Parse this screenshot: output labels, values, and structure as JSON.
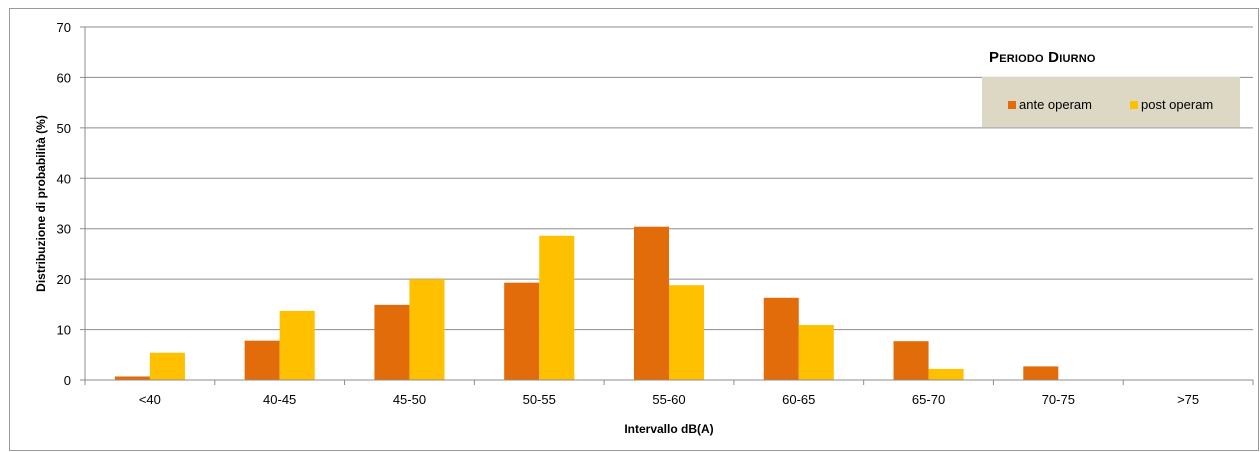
{
  "chart_data": {
    "type": "bar",
    "title": "Periodo Diurno",
    "xlabel": "Intervallo dB(A)",
    "ylabel": "Distribuzione di probabilità (%)",
    "ylim": [
      0,
      70
    ],
    "yticks": [
      0,
      10,
      20,
      30,
      40,
      50,
      60,
      70
    ],
    "categories": [
      "<40",
      "40-45",
      "45-50",
      "50-55",
      "55-60",
      "60-65",
      "65-70",
      "70-75",
      ">75"
    ],
    "series": [
      {
        "name": "ante operam",
        "color": "#e36c0a",
        "values": [
          0.7,
          7.8,
          14.9,
          19.3,
          30.4,
          16.3,
          7.7,
          2.7,
          0
        ]
      },
      {
        "name": "post operam",
        "color": "#ffc000",
        "values": [
          5.4,
          13.7,
          20.0,
          28.6,
          18.8,
          10.9,
          2.2,
          0,
          0
        ]
      }
    ],
    "grid": true,
    "legend": "top-right"
  }
}
